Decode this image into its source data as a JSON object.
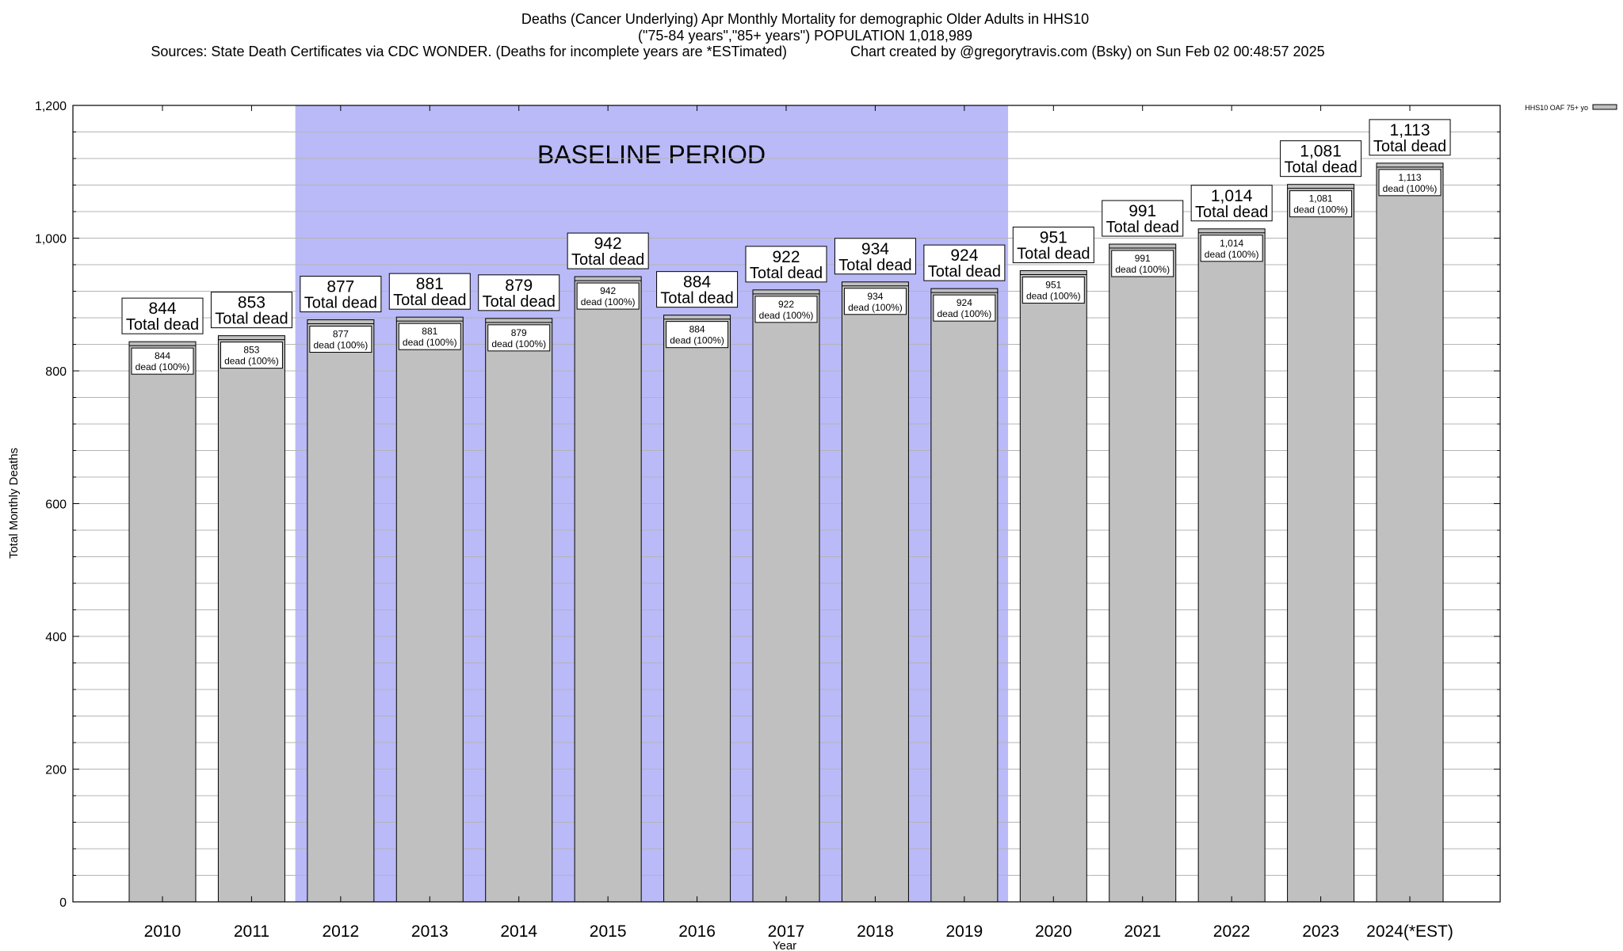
{
  "title": {
    "line1": "Deaths (Cancer Underlying) Apr Monthly Mortality for demographic Older Adults in HHS10",
    "line2": "(\"75-84 years\",\"85+ years\") POPULATION 1,018,989",
    "line3": "Sources: State Death Certificates via CDC WONDER. (Deaths for incomplete years are *ESTimated)                Chart created by @gregorytravis.com (Bsky) on Sun Feb 02 00:48:57 2025"
  },
  "colors": {
    "bar_fill": "#c0c0c0",
    "baseline_fill": "#babaf8",
    "grid": "#b4b4b4"
  },
  "chart_data": {
    "type": "bar",
    "categories": [
      "2010",
      "2011",
      "2012",
      "2013",
      "2014",
      "2015",
      "2016",
      "2017",
      "2018",
      "2019",
      "2020",
      "2021",
      "2022",
      "2023",
      "2024(*EST)"
    ],
    "series": [
      {
        "name": "HHS10 OAF 75+ yo",
        "values": [
          844,
          853,
          877,
          881,
          879,
          942,
          884,
          922,
          934,
          924,
          951,
          991,
          1014,
          1081,
          1113
        ]
      }
    ],
    "value_labels": [
      "844",
      "853",
      "877",
      "881",
      "879",
      "942",
      "884",
      "922",
      "934",
      "924",
      "951",
      "991",
      "1,014",
      "1,081",
      "1,113"
    ],
    "total_label": "Total dead",
    "inner_label": "dead (100%)",
    "xlabel": "Year",
    "ylabel": "Total Monthly Deaths",
    "ylim": [
      0,
      1200
    ],
    "yticks": [
      0,
      200,
      400,
      600,
      800,
      1000,
      1200
    ],
    "ytick_labels": [
      "0",
      "200",
      "400",
      "600",
      "800",
      "1,000",
      "1,200"
    ],
    "minor_tick_step": 40,
    "grid": true,
    "legend": {
      "placement": "top-right",
      "entries": [
        "HHS10 OAF 75+ yo"
      ]
    },
    "baseline_period": {
      "label": "BASELINE PERIOD",
      "start": "2012",
      "end": "2019"
    }
  }
}
